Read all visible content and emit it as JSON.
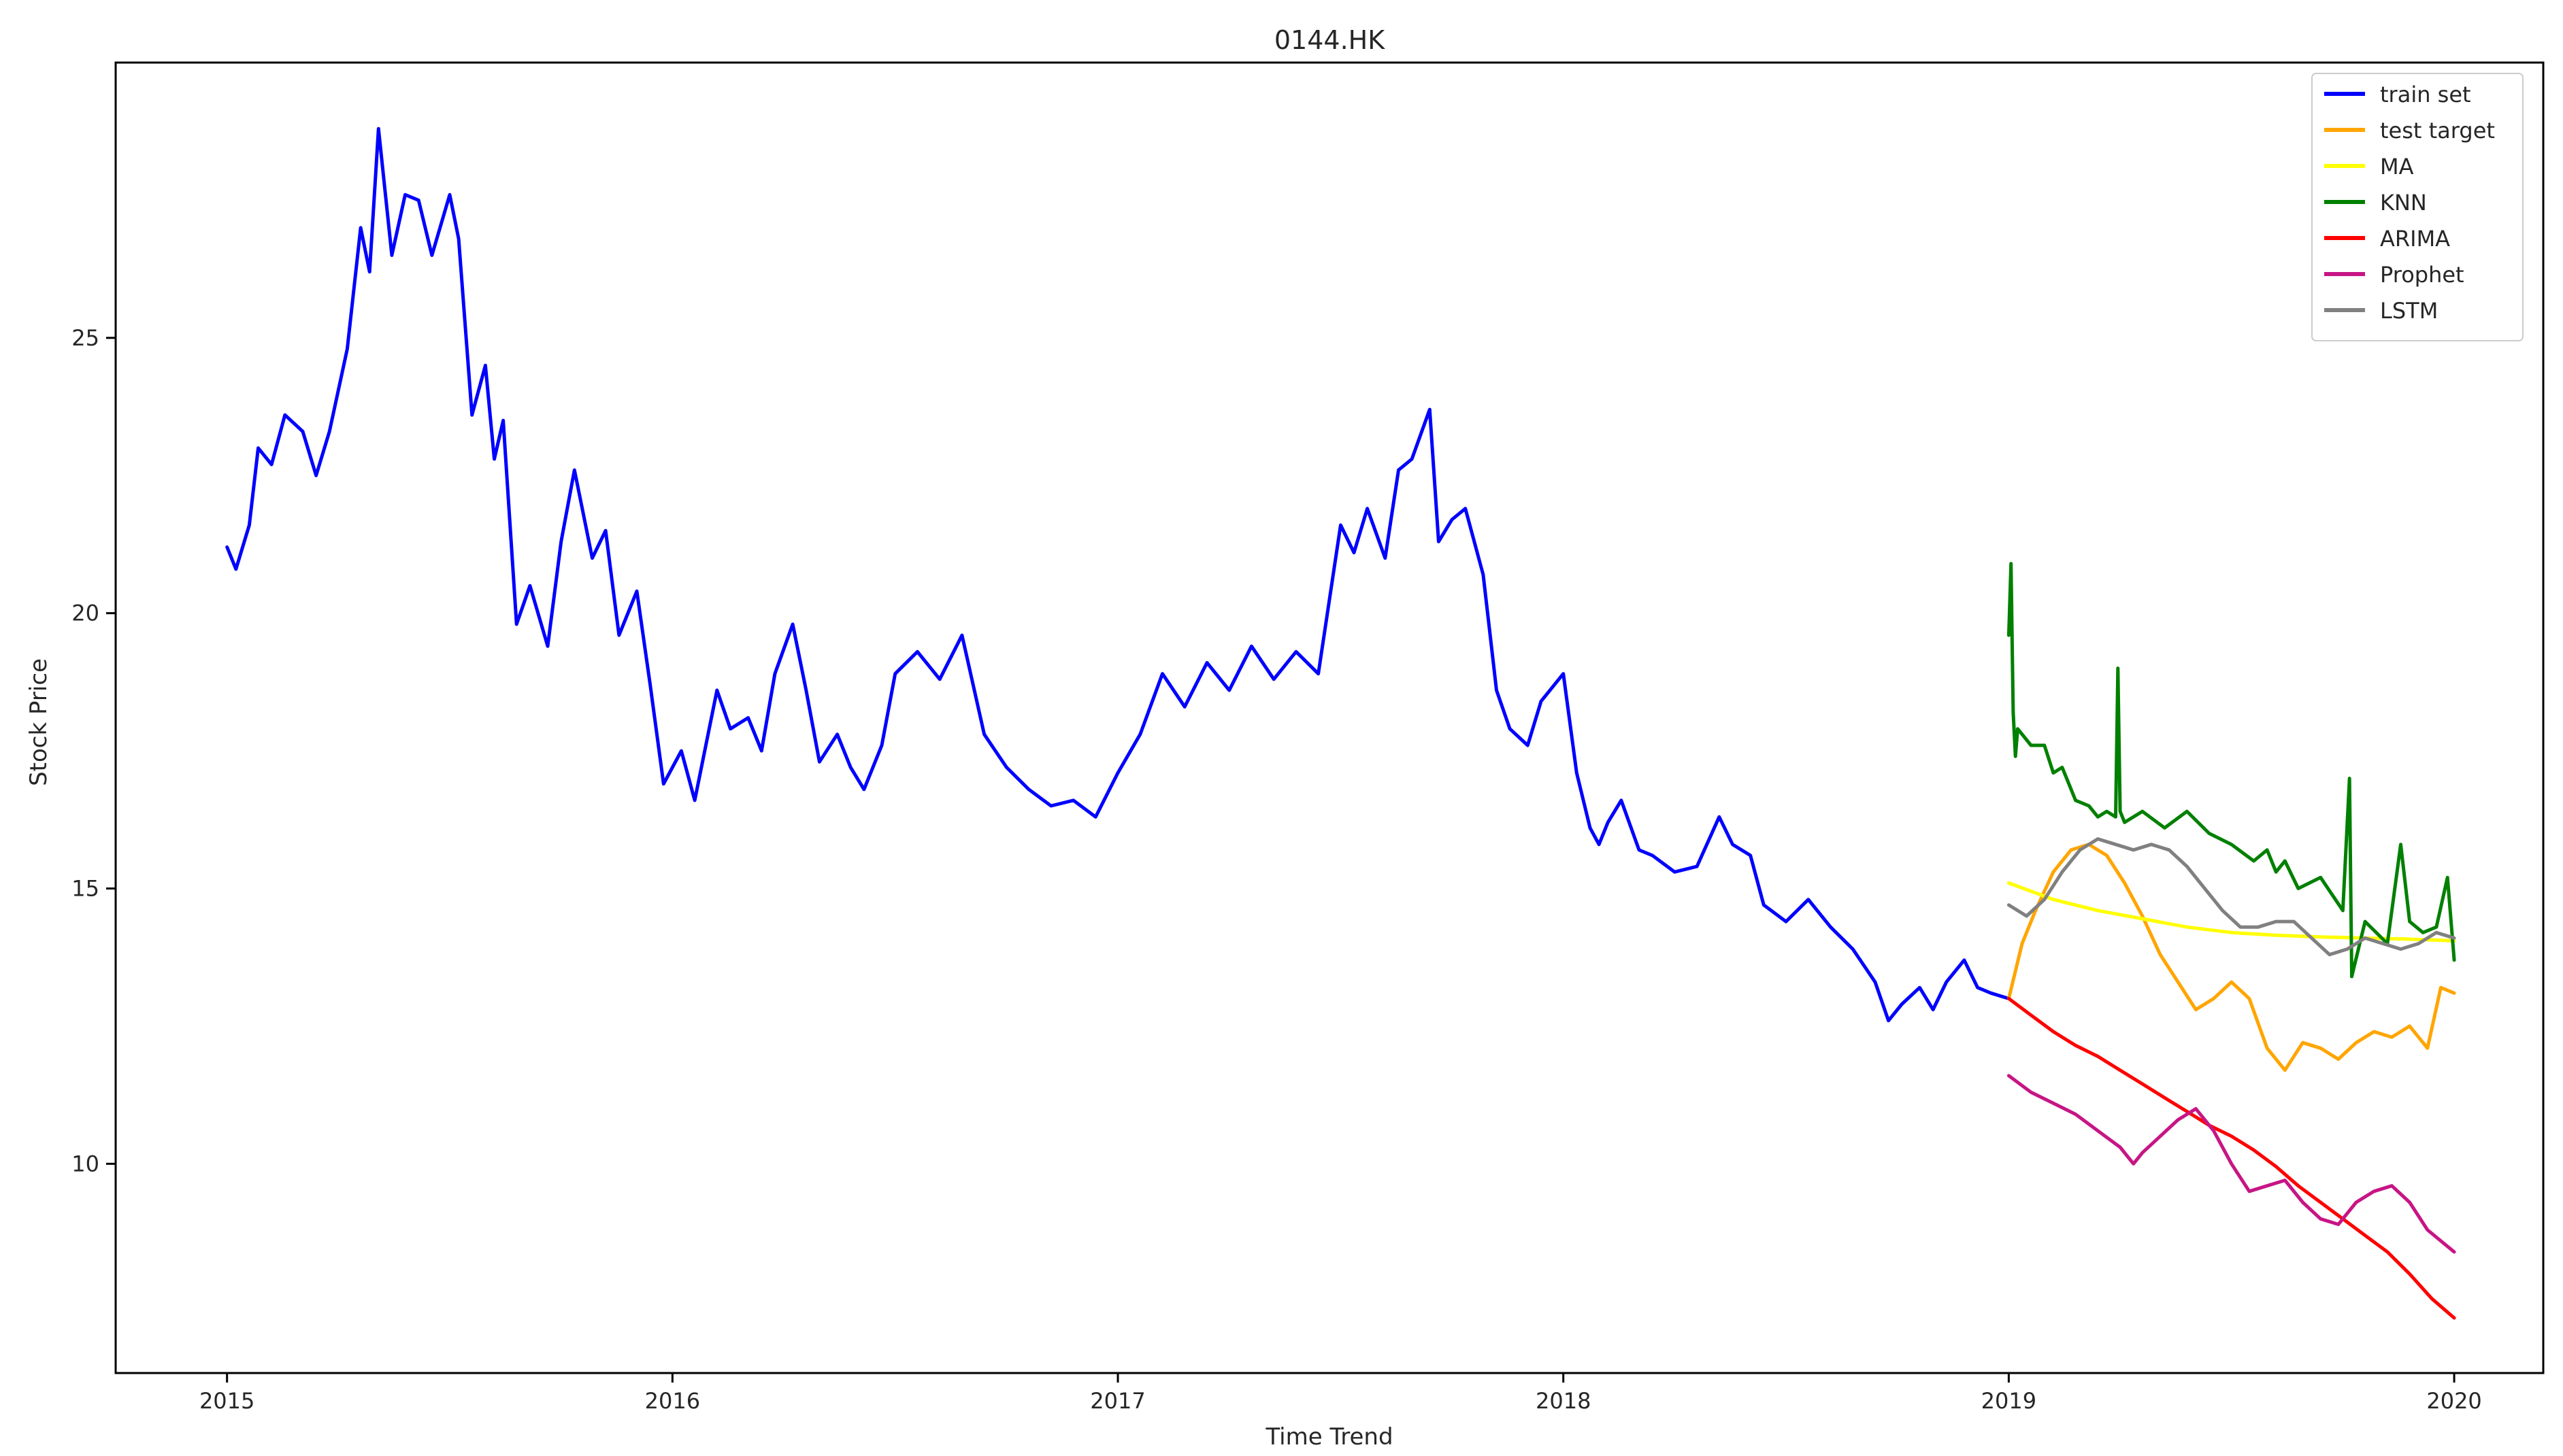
{
  "chart_data": {
    "type": "line",
    "title": "0144.HK",
    "xlabel": "Time Trend",
    "ylabel": "Stock Price",
    "xlim": [
      2014.75,
      2020.2
    ],
    "ylim": [
      6.2,
      30.0
    ],
    "x_ticks": [
      2015,
      2016,
      2017,
      2018,
      2019,
      2020
    ],
    "x_tick_labels": [
      "2015",
      "2016",
      "2017",
      "2018",
      "2019",
      "2020"
    ],
    "y_ticks": [
      10,
      15,
      20,
      25
    ],
    "y_tick_labels": [
      "10",
      "15",
      "20",
      "25"
    ],
    "grid": false,
    "legend_position": "top-right",
    "series": [
      {
        "name": "train set",
        "color": "#0000ff",
        "x": [
          2015.0,
          2015.02,
          2015.05,
          2015.07,
          2015.1,
          2015.13,
          2015.17,
          2015.2,
          2015.23,
          2015.27,
          2015.3,
          2015.32,
          2015.34,
          2015.37,
          2015.4,
          2015.43,
          2015.46,
          2015.5,
          2015.52,
          2015.55,
          2015.58,
          2015.6,
          2015.62,
          2015.65,
          2015.68,
          2015.72,
          2015.75,
          2015.78,
          2015.82,
          2015.85,
          2015.88,
          2015.92,
          2015.95,
          2015.98,
          2016.02,
          2016.05,
          2016.08,
          2016.1,
          2016.13,
          2016.17,
          2016.2,
          2016.23,
          2016.27,
          2016.3,
          2016.33,
          2016.37,
          2016.4,
          2016.43,
          2016.47,
          2016.5,
          2016.55,
          2016.6,
          2016.65,
          2016.7,
          2016.75,
          2016.8,
          2016.85,
          2016.9,
          2016.95,
          2017.0,
          2017.05,
          2017.1,
          2017.15,
          2017.2,
          2017.25,
          2017.3,
          2017.35,
          2017.4,
          2017.45,
          2017.5,
          2017.53,
          2017.56,
          2017.6,
          2017.63,
          2017.66,
          2017.7,
          2017.72,
          2017.75,
          2017.78,
          2017.82,
          2017.85,
          2017.88,
          2017.92,
          2017.95,
          2018.0,
          2018.03,
          2018.06,
          2018.08,
          2018.1,
          2018.13,
          2018.17,
          2018.2,
          2018.25,
          2018.3,
          2018.35,
          2018.38,
          2018.42,
          2018.45,
          2018.5,
          2018.55,
          2018.6,
          2018.65,
          2018.7,
          2018.73,
          2018.76,
          2018.8,
          2018.83,
          2018.86,
          2018.9,
          2018.93,
          2018.96,
          2019.0
        ],
        "y": [
          21.2,
          20.8,
          21.6,
          23.0,
          22.7,
          23.6,
          23.3,
          22.5,
          23.3,
          24.8,
          27.0,
          26.2,
          28.8,
          26.5,
          27.6,
          27.5,
          26.5,
          27.6,
          26.8,
          23.6,
          24.5,
          22.8,
          23.5,
          19.8,
          20.5,
          19.4,
          21.3,
          22.6,
          21.0,
          21.5,
          19.6,
          20.4,
          18.7,
          16.9,
          17.5,
          16.6,
          17.8,
          18.6,
          17.9,
          18.1,
          17.5,
          18.9,
          19.8,
          18.6,
          17.3,
          17.8,
          17.2,
          16.8,
          17.6,
          18.9,
          19.3,
          18.8,
          19.6,
          17.8,
          17.2,
          16.8,
          16.5,
          16.6,
          16.3,
          17.1,
          17.8,
          18.9,
          18.3,
          19.1,
          18.6,
          19.4,
          18.8,
          19.3,
          18.9,
          21.6,
          21.1,
          21.9,
          21.0,
          22.6,
          22.8,
          23.7,
          21.3,
          21.7,
          21.9,
          20.7,
          18.6,
          17.9,
          17.6,
          18.4,
          18.9,
          17.1,
          16.1,
          15.8,
          16.2,
          16.6,
          15.7,
          15.6,
          15.3,
          15.4,
          16.3,
          15.8,
          15.6,
          14.7,
          14.4,
          14.8,
          14.3,
          13.9,
          13.3,
          12.6,
          12.9,
          13.2,
          12.8,
          13.3,
          13.7,
          13.2,
          13.1,
          13.0
        ]
      },
      {
        "name": "test target",
        "color": "#ffa500",
        "x": [
          2019.0,
          2019.03,
          2019.06,
          2019.1,
          2019.14,
          2019.18,
          2019.22,
          2019.26,
          2019.3,
          2019.34,
          2019.38,
          2019.42,
          2019.46,
          2019.5,
          2019.54,
          2019.58,
          2019.62,
          2019.66,
          2019.7,
          2019.74,
          2019.78,
          2019.82,
          2019.86,
          2019.9,
          2019.94,
          2019.97,
          2020.0
        ],
        "y": [
          13.0,
          14.0,
          14.6,
          15.3,
          15.7,
          15.8,
          15.6,
          15.1,
          14.5,
          13.8,
          13.3,
          12.8,
          13.0,
          13.3,
          13.0,
          12.1,
          11.7,
          12.2,
          12.1,
          11.9,
          12.2,
          12.4,
          12.3,
          12.5,
          12.1,
          13.2,
          13.1
        ]
      },
      {
        "name": "MA",
        "color": "#ffff00",
        "x": [
          2019.0,
          2019.1,
          2019.2,
          2019.3,
          2019.4,
          2019.5,
          2019.6,
          2019.7,
          2019.8,
          2019.9,
          2020.0
        ],
        "y": [
          15.1,
          14.8,
          14.6,
          14.45,
          14.3,
          14.2,
          14.15,
          14.12,
          14.1,
          14.08,
          14.05
        ]
      },
      {
        "name": "KNN",
        "color": "#008000",
        "x": [
          2019.0,
          2019.005,
          2019.01,
          2019.015,
          2019.02,
          2019.05,
          2019.08,
          2019.1,
          2019.12,
          2019.15,
          2019.18,
          2019.2,
          2019.22,
          2019.24,
          2019.245,
          2019.25,
          2019.26,
          2019.3,
          2019.35,
          2019.4,
          2019.45,
          2019.5,
          2019.55,
          2019.58,
          2019.6,
          2019.62,
          2019.65,
          2019.7,
          2019.75,
          2019.765,
          2019.77,
          2019.8,
          2019.85,
          2019.88,
          2019.9,
          2019.93,
          2019.96,
          2019.985,
          2020.0
        ],
        "y": [
          19.6,
          20.9,
          18.2,
          17.4,
          17.9,
          17.6,
          17.6,
          17.1,
          17.2,
          16.6,
          16.5,
          16.3,
          16.4,
          16.3,
          19.0,
          16.4,
          16.2,
          16.4,
          16.1,
          16.4,
          16.0,
          15.8,
          15.5,
          15.7,
          15.3,
          15.5,
          15.0,
          15.2,
          14.6,
          17.0,
          13.4,
          14.4,
          14.0,
          15.8,
          14.4,
          14.2,
          14.3,
          15.2,
          13.7
        ]
      },
      {
        "name": "ARIMA",
        "color": "#ff0000",
        "x": [
          2019.0,
          2019.05,
          2019.1,
          2019.15,
          2019.2,
          2019.25,
          2019.3,
          2019.35,
          2019.4,
          2019.45,
          2019.5,
          2019.55,
          2019.6,
          2019.65,
          2019.7,
          2019.75,
          2019.8,
          2019.85,
          2019.9,
          2019.95,
          2020.0
        ],
        "y": [
          13.0,
          12.7,
          12.4,
          12.15,
          11.95,
          11.7,
          11.45,
          11.2,
          10.95,
          10.7,
          10.5,
          10.25,
          9.95,
          9.6,
          9.3,
          9.0,
          8.7,
          8.4,
          8.0,
          7.55,
          7.2
        ]
      },
      {
        "name": "Prophet",
        "color": "#c71585",
        "x": [
          2019.0,
          2019.05,
          2019.1,
          2019.15,
          2019.2,
          2019.25,
          2019.28,
          2019.3,
          2019.34,
          2019.38,
          2019.42,
          2019.46,
          2019.5,
          2019.54,
          2019.58,
          2019.62,
          2019.66,
          2019.7,
          2019.74,
          2019.78,
          2019.82,
          2019.86,
          2019.9,
          2019.94,
          2019.97,
          2020.0
        ],
        "y": [
          11.6,
          11.3,
          11.1,
          10.9,
          10.6,
          10.3,
          10.0,
          10.2,
          10.5,
          10.8,
          11.0,
          10.6,
          10.0,
          9.5,
          9.6,
          9.7,
          9.3,
          9.0,
          8.9,
          9.3,
          9.5,
          9.6,
          9.3,
          8.8,
          8.6,
          8.4
        ]
      },
      {
        "name": "LSTM",
        "color": "#808080",
        "x": [
          2019.0,
          2019.04,
          2019.08,
          2019.12,
          2019.16,
          2019.2,
          2019.24,
          2019.28,
          2019.32,
          2019.36,
          2019.4,
          2019.44,
          2019.48,
          2019.52,
          2019.56,
          2019.6,
          2019.64,
          2019.68,
          2019.72,
          2019.76,
          2019.8,
          2019.84,
          2019.88,
          2019.92,
          2019.96,
          2020.0
        ],
        "y": [
          14.7,
          14.5,
          14.8,
          15.3,
          15.7,
          15.9,
          15.8,
          15.7,
          15.8,
          15.7,
          15.4,
          15.0,
          14.6,
          14.3,
          14.3,
          14.4,
          14.4,
          14.1,
          13.8,
          13.9,
          14.1,
          14.0,
          13.9,
          14.0,
          14.2,
          14.1
        ]
      }
    ]
  }
}
